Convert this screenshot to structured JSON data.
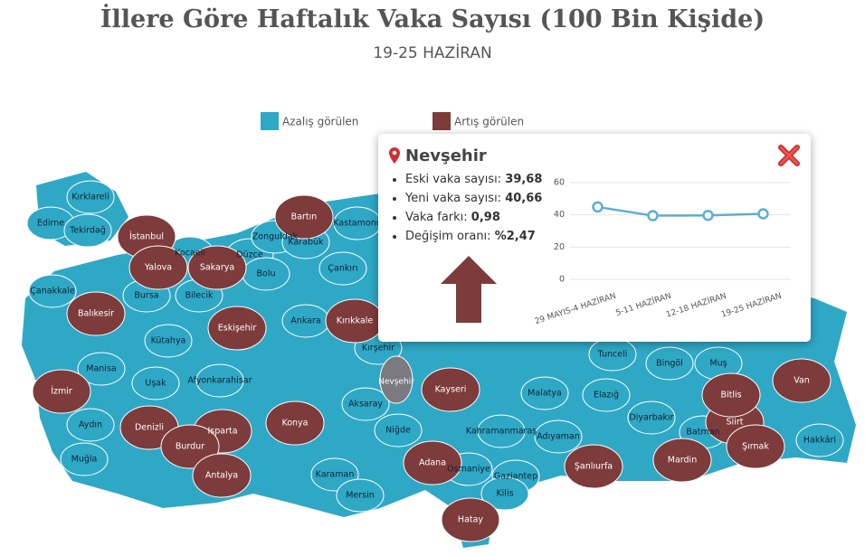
{
  "title": "İllere Göre Haftalık Vaka Sayısı (100 Bin Kişide)",
  "subtitle": "19-25 HAZİRAN",
  "legend": [
    {
      "label": "Azalış görülen",
      "color": "#2fa8c6",
      "provinces": [
        "Kırklareli",
        "Edirne",
        "Tekirdağ",
        "Kocaeli",
        "Düzce",
        "Zonguldak",
        "Karabük",
        "Kastamonu",
        "Bolu",
        "Çankırı",
        "Bursa",
        "Bilecik",
        "Çanakkale",
        "Kütahya",
        "Ankara",
        "Kırşehir",
        "Manisa",
        "Uşak",
        "Afyonkarahisar",
        "Aksaray",
        "Aydın",
        "Muğla",
        "Niğde",
        "Karaman",
        "Mersin",
        "Kahramanmaraş",
        "Osmaniye",
        "Gaziantep",
        "Kilis",
        "Adıyaman",
        "Malatya",
        "Elazığ",
        "Tunceli",
        "Bingöl",
        "Muş",
        "Diyarbakır",
        "Batman",
        "Hakkâri"
      ]
    },
    {
      "label": "Artış görülen",
      "color": "#7e3b3b",
      "provinces": [
        "İstanbul",
        "Yalova",
        "Sakarya",
        "Bartın",
        "Eskişehir",
        "Kırıkkale",
        "Balıkesir",
        "İzmir",
        "Denizli",
        "Isparta",
        "Burdur",
        "Antalya",
        "Konya",
        "Kayseri",
        "Adana",
        "Hatay",
        "Şanlıurfa",
        "Mardin",
        "Siirt",
        "Bitlis",
        "Van",
        "Şırnak"
      ]
    }
  ],
  "selected_province": "Nevşehir",
  "popup": {
    "title": "Nevşehir",
    "stats": [
      {
        "label": "Eski vaka sayısı:",
        "value": "39,68"
      },
      {
        "label": "Yeni vaka sayısı:",
        "value": "40,66"
      },
      {
        "label": "Vaka farkı:",
        "value": "0,98"
      },
      {
        "label": "Değişim oranı:",
        "value": "%2,47"
      }
    ],
    "chart": {
      "type": "line",
      "categories": [
        "29 MAYIS-4 HAZİRAN",
        "5-11 HAZİRAN",
        "12-18 HAZİRAN",
        "19-25 HAZİRAN"
      ],
      "values": [
        44.9,
        39.5,
        39.68,
        40.66
      ],
      "color": "#5aaed6",
      "ylim": [
        0,
        60
      ],
      "yticks": [
        0,
        20,
        40,
        60
      ],
      "grid": true
    }
  }
}
